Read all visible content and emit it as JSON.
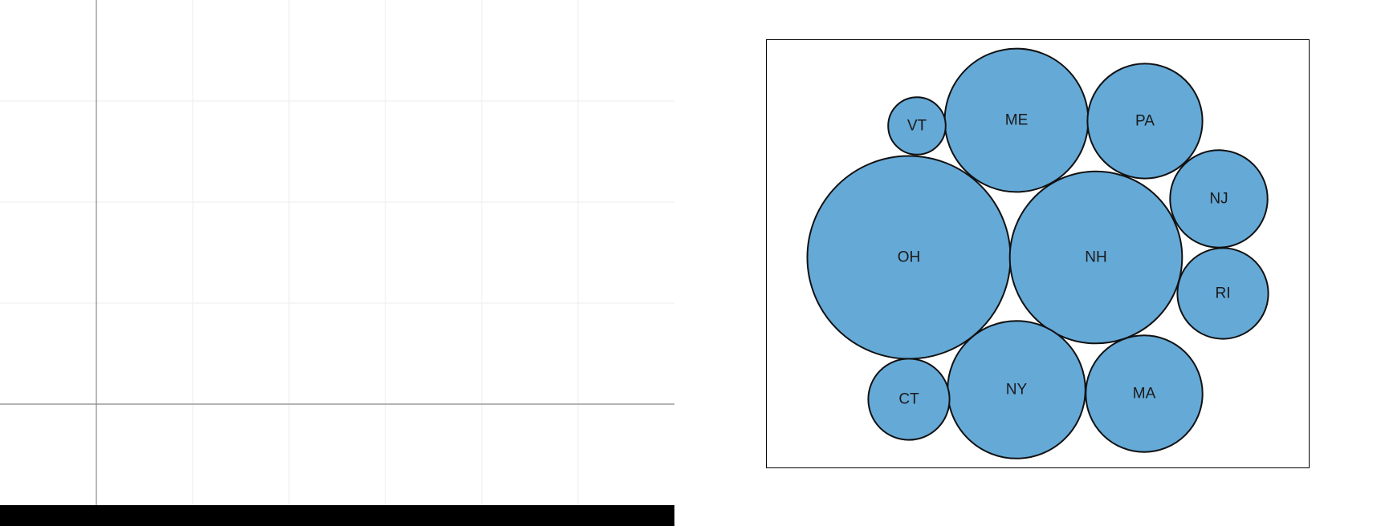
{
  "colors": {
    "bubble_fill": "#65a9d7",
    "bubble_stroke": "#111111",
    "grid_minor": "#eeeeee",
    "axis_line": "#888888",
    "frame": "#000000",
    "bottom_bar": "#000000"
  },
  "left_panel": {
    "content": "empty-axes",
    "grid": true
  },
  "chart_data": {
    "type": "packed-bubble",
    "title": "",
    "legend": "none",
    "bubbles": [
      {
        "label": "OH",
        "value": 100
      },
      {
        "label": "NH",
        "value": 72
      },
      {
        "label": "ME",
        "value": 50
      },
      {
        "label": "NY",
        "value": 46
      },
      {
        "label": "MA",
        "value": 33
      },
      {
        "label": "PA",
        "value": 32
      },
      {
        "label": "NJ",
        "value": 23
      },
      {
        "label": "RI",
        "value": 20
      },
      {
        "label": "CT",
        "value": 16
      },
      {
        "label": "VT",
        "value": 8
      }
    ]
  }
}
